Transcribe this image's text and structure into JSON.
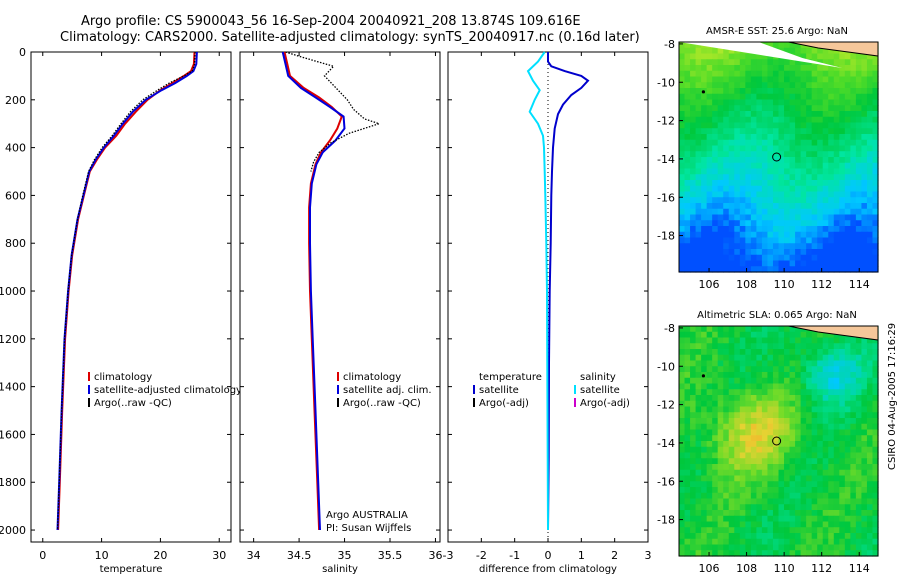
{
  "header": {
    "title_line1": "Argo profile: CS 5900043_56 16-Sep-2004 20040921_208 13.874S 109.616E",
    "title_line2": "Climatology: CARS2000. Satellite-adjusted climatology: synTS_20040917.nc (0.16d later)"
  },
  "side_label": "CSIRO 04-Aug-2005 17:16:29",
  "chart_data": [
    {
      "type": "line",
      "panel": "temperature",
      "xlabel": "temperature",
      "ylabel": "",
      "xlim": [
        -2,
        32
      ],
      "ylim": [
        2050,
        0
      ],
      "xticks": [
        "0",
        "10",
        "20",
        "30"
      ],
      "xtick_values": [
        0,
        10,
        20,
        30
      ],
      "yticks": [
        "0",
        "200",
        "400",
        "600",
        "800",
        "1000",
        "1200",
        "1400",
        "1600",
        "1800",
        "2000"
      ],
      "ytick_values": [
        0,
        200,
        400,
        600,
        800,
        1000,
        1200,
        1400,
        1600,
        1800,
        2000
      ],
      "legend": [
        "climatology",
        "satellite-adjusted climatology",
        "Argo(..raw -QC)"
      ],
      "series": [
        {
          "name": "climatology",
          "color": "#dd0000",
          "x": [
            25.8,
            25.7,
            25.2,
            24.0,
            22.0,
            20.0,
            17.8,
            15.8,
            14.0,
            12.5,
            10.6,
            9.2,
            8.0,
            7.0,
            6.0,
            5.0,
            4.4,
            3.8,
            3.3,
            2.9,
            2.6
          ],
          "y": [
            0,
            50,
            80,
            100,
            130,
            160,
            200,
            250,
            300,
            350,
            400,
            450,
            500,
            600,
            700,
            850,
            1000,
            1200,
            1500,
            1800,
            2000
          ]
        },
        {
          "name": "satellite-adjusted climatology",
          "color": "#0000dd",
          "x": [
            26.2,
            26.1,
            25.6,
            24.5,
            22.5,
            20.2,
            17.5,
            15.3,
            13.6,
            12.1,
            10.4,
            9.0,
            7.9,
            6.9,
            5.9,
            4.9,
            4.3,
            3.7,
            3.2,
            2.8,
            2.5
          ],
          "y": [
            0,
            50,
            80,
            100,
            130,
            160,
            200,
            250,
            300,
            350,
            400,
            450,
            500,
            600,
            700,
            850,
            1000,
            1200,
            1500,
            1800,
            2000
          ]
        },
        {
          "name": "Argo(..raw -QC)",
          "color": "#000000",
          "dotted": true,
          "x": [
            25.9,
            25.8,
            25.4,
            24.0,
            21.5,
            19.5,
            17.0,
            14.9,
            13.3,
            11.8,
            10.1,
            8.8,
            7.8,
            6.8,
            5.9,
            4.9,
            4.3,
            3.7,
            3.2,
            2.8,
            2.5
          ],
          "y": [
            0,
            50,
            80,
            100,
            130,
            160,
            200,
            250,
            300,
            350,
            400,
            450,
            500,
            600,
            700,
            850,
            1000,
            1200,
            1500,
            1800,
            2000
          ]
        }
      ]
    },
    {
      "type": "line",
      "panel": "salinity",
      "xlabel": "salinity",
      "xlim": [
        33.85,
        36.05
      ],
      "ylim": [
        2050,
        0
      ],
      "xticks": [
        "34",
        "34.5",
        "35",
        "35.5",
        "36"
      ],
      "xtick_values": [
        34,
        34.5,
        35,
        35.5,
        36
      ],
      "legend": [
        "climatology",
        "satellite adj. clim.",
        "Argo(..raw -QC)"
      ],
      "annotations": [
        "Argo AUSTRALIA",
        "PI: Susan Wijffels"
      ],
      "series": [
        {
          "name": "climatology",
          "color": "#dd0000",
          "x": [
            34.34,
            34.37,
            34.4,
            34.55,
            34.72,
            34.86,
            34.97,
            34.92,
            34.84,
            34.74,
            34.68,
            34.63,
            34.61,
            34.61,
            34.62,
            34.64,
            34.67,
            34.7,
            34.72
          ],
          "y": [
            0,
            50,
            100,
            150,
            190,
            230,
            270,
            320,
            370,
            420,
            470,
            550,
            650,
            800,
            1000,
            1200,
            1500,
            1800,
            2000
          ]
        },
        {
          "name": "satellite adj. clim.",
          "color": "#0000dd",
          "x": [
            34.32,
            34.35,
            34.38,
            34.52,
            34.68,
            34.84,
            34.99,
            35.0,
            34.9,
            34.76,
            34.69,
            34.64,
            34.62,
            34.62,
            34.63,
            34.65,
            34.68,
            34.71,
            34.73
          ],
          "y": [
            0,
            50,
            100,
            150,
            190,
            230,
            270,
            320,
            370,
            420,
            470,
            550,
            650,
            800,
            1000,
            1200,
            1500,
            1800,
            2000
          ]
        },
        {
          "name": "Argo(..raw -QC)",
          "color": "#000000",
          "dotted": true,
          "x": [
            34.35,
            34.52,
            34.7,
            34.88,
            34.78,
            35.03,
            35.1,
            35.22,
            35.38,
            35.05,
            34.85,
            34.72,
            34.66,
            34.63
          ],
          "y": [
            0,
            20,
            40,
            60,
            100,
            200,
            240,
            280,
            300,
            340,
            380,
            420,
            460,
            500
          ]
        }
      ]
    },
    {
      "type": "line",
      "panel": "difference",
      "xlabel": "difference from climatology",
      "xlim": [
        -3,
        3
      ],
      "ylim": [
        2050,
        0
      ],
      "xticks": [
        "-3",
        "-2",
        "-1",
        "0",
        "1",
        "2",
        "3"
      ],
      "xtick_values": [
        -3,
        -2,
        -1,
        0,
        1,
        2,
        3
      ],
      "legend_left": [
        "temperature",
        "satellite",
        "Argo(-adj)"
      ],
      "legend_right": [
        "salinity",
        "satellite",
        "Argo(-adj)"
      ],
      "series": [
        {
          "name": "temperature satellite",
          "color": "#0000cc",
          "x": [
            0.0,
            0.0,
            0.1,
            0.5,
            1.0,
            1.2,
            1.0,
            0.7,
            0.45,
            0.3,
            0.2,
            0.15,
            0.12,
            0.1,
            0.08,
            0.05,
            0.03,
            0.02,
            0.0
          ],
          "y": [
            0,
            40,
            60,
            80,
            100,
            120,
            150,
            180,
            220,
            260,
            320,
            400,
            500,
            600,
            800,
            1000,
            1300,
            1700,
            2000
          ]
        },
        {
          "name": "salinity satellite",
          "color": "#00e0ff",
          "x": [
            -0.1,
            -0.3,
            -0.6,
            -0.45,
            -0.25,
            -0.4,
            -0.55,
            -0.3,
            -0.15,
            -0.12,
            -0.1,
            -0.08,
            -0.05,
            -0.03,
            -0.02,
            -0.01,
            0.0
          ],
          "y": [
            0,
            40,
            80,
            120,
            160,
            200,
            250,
            300,
            350,
            400,
            500,
            600,
            800,
            1000,
            1300,
            1700,
            2000
          ]
        }
      ]
    },
    {
      "type": "heatmap",
      "panel": "map_sst",
      "title": "AMSR-E SST: 25.6 Argo: NaN",
      "xlim": [
        104.4,
        115.0
      ],
      "ylim": [
        -19.9,
        -7.9
      ],
      "xticks": [
        "106",
        "108",
        "110",
        "112",
        "114"
      ],
      "xtick_values": [
        106,
        108,
        110,
        112,
        114
      ],
      "yticks": [
        "-8",
        "-10",
        "-12",
        "-14",
        "-16",
        "-18"
      ],
      "ytick_values": [
        -8,
        -10,
        -12,
        -14,
        -16,
        -18
      ],
      "float_position": [
        109.6,
        -13.9
      ],
      "previous_position": [
        105.7,
        -10.5
      ]
    },
    {
      "type": "heatmap",
      "panel": "map_sla",
      "title": "Altimetric SLA: 0.065 Argo: NaN",
      "xlim": [
        104.4,
        115.0
      ],
      "ylim": [
        -19.9,
        -7.9
      ],
      "xticks": [
        "106",
        "108",
        "110",
        "112",
        "114"
      ],
      "xtick_values": [
        106,
        108,
        110,
        112,
        114
      ],
      "yticks": [
        "-8",
        "-10",
        "-12",
        "-14",
        "-16",
        "-18"
      ],
      "ytick_values": [
        -8,
        -10,
        -12,
        -14,
        -16,
        -18
      ],
      "float_position": [
        109.6,
        -13.9
      ],
      "previous_position": [
        105.7,
        -10.5
      ]
    }
  ]
}
